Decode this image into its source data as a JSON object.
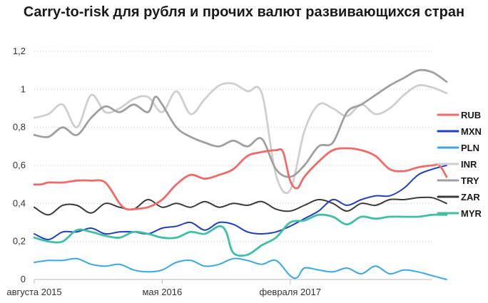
{
  "chart_data": {
    "type": "line",
    "title": "Carry-to-risk для рубля и прочих валют развивающихся стран",
    "xlabel": "",
    "ylabel": "",
    "x_tick_labels": [
      "августа 2015",
      "мая 2016",
      "февраля 2017"
    ],
    "x_tick_positions": [
      0,
      9,
      18
    ],
    "x_range": [
      0,
      28
    ],
    "y_ticks": [
      0,
      0.2,
      0.4,
      0.6,
      0.8,
      1,
      1.2
    ],
    "y_tick_labels": [
      "0",
      "0,2",
      "0,4",
      "0,6",
      "0,8",
      "1",
      "1,2"
    ],
    "ylim": [
      0,
      1.2
    ],
    "grid": "horizontal dotted",
    "legend": "right",
    "series": [
      {
        "name": "RUB",
        "color": "#f06a6a",
        "points": [
          [
            0,
            0.5
          ],
          [
            0.5,
            0.5
          ],
          [
            1,
            0.51
          ],
          [
            2,
            0.51
          ],
          [
            3,
            0.52
          ],
          [
            4,
            0.52
          ],
          [
            5,
            0.51
          ],
          [
            6,
            0.4
          ],
          [
            6.5,
            0.37
          ],
          [
            7,
            0.37
          ],
          [
            8,
            0.38
          ],
          [
            9,
            0.42
          ],
          [
            10,
            0.5
          ],
          [
            11,
            0.55
          ],
          [
            12,
            0.53
          ],
          [
            13,
            0.55
          ],
          [
            14,
            0.58
          ],
          [
            15,
            0.65
          ],
          [
            16,
            0.67
          ],
          [
            17,
            0.68
          ],
          [
            17.5,
            0.67
          ],
          [
            18,
            0.52
          ],
          [
            18.5,
            0.48
          ],
          [
            19,
            0.54
          ],
          [
            20,
            0.62
          ],
          [
            21,
            0.68
          ],
          [
            22,
            0.69
          ],
          [
            23,
            0.68
          ],
          [
            24,
            0.65
          ],
          [
            25,
            0.58
          ],
          [
            26,
            0.57
          ],
          [
            27,
            0.59
          ],
          [
            28,
            0.6
          ],
          [
            28.5,
            0.6
          ],
          [
            29,
            0.54
          ]
        ]
      },
      {
        "name": "MXN",
        "color": "#1f3fbf",
        "points": [
          [
            0,
            0.24
          ],
          [
            1,
            0.21
          ],
          [
            2,
            0.25
          ],
          [
            3,
            0.25
          ],
          [
            4,
            0.27
          ],
          [
            5,
            0.24
          ],
          [
            6,
            0.25
          ],
          [
            7,
            0.25
          ],
          [
            8,
            0.24
          ],
          [
            9,
            0.27
          ],
          [
            10,
            0.28
          ],
          [
            11,
            0.3
          ],
          [
            12,
            0.26
          ],
          [
            13,
            0.3
          ],
          [
            14,
            0.29
          ],
          [
            15,
            0.25
          ],
          [
            16,
            0.24
          ],
          [
            17,
            0.25
          ],
          [
            18,
            0.28
          ],
          [
            19,
            0.32
          ],
          [
            20,
            0.36
          ],
          [
            21,
            0.42
          ],
          [
            22,
            0.39
          ],
          [
            23,
            0.42
          ],
          [
            24,
            0.44
          ],
          [
            25,
            0.44
          ],
          [
            26,
            0.48
          ],
          [
            27,
            0.55
          ],
          [
            28,
            0.58
          ],
          [
            29,
            0.6
          ]
        ]
      },
      {
        "name": "PLN",
        "color": "#3aa8e6",
        "points": [
          [
            0,
            0.09
          ],
          [
            1,
            0.1
          ],
          [
            2,
            0.1
          ],
          [
            3,
            0.11
          ],
          [
            4,
            0.08
          ],
          [
            5,
            0.07
          ],
          [
            6,
            0.08
          ],
          [
            7,
            0.05
          ],
          [
            8,
            0.04
          ],
          [
            9,
            0.05
          ],
          [
            10,
            0.09
          ],
          [
            11,
            0.1
          ],
          [
            12,
            0.07
          ],
          [
            13,
            0.08
          ],
          [
            14,
            0.11
          ],
          [
            15,
            0.1
          ],
          [
            16,
            0.08
          ],
          [
            17,
            0.1
          ],
          [
            18,
            0.02
          ],
          [
            18.5,
            0.01
          ],
          [
            19,
            0.06
          ],
          [
            20,
            0.05
          ],
          [
            21,
            0.04
          ],
          [
            22,
            0.06
          ],
          [
            23,
            0.03
          ],
          [
            24,
            0.07
          ],
          [
            25,
            0.03
          ],
          [
            26,
            0.05
          ],
          [
            27,
            0.04
          ],
          [
            28,
            0.02
          ],
          [
            29,
            0.0
          ]
        ]
      },
      {
        "name": "INR",
        "color": "#cfcfcf",
        "points": [
          [
            0,
            0.85
          ],
          [
            1,
            0.87
          ],
          [
            2,
            0.92
          ],
          [
            3,
            0.8
          ],
          [
            4,
            0.97
          ],
          [
            5,
            0.88
          ],
          [
            6,
            0.9
          ],
          [
            7,
            0.95
          ],
          [
            8,
            0.96
          ],
          [
            9,
            0.88
          ],
          [
            10,
            0.99
          ],
          [
            11,
            0.87
          ],
          [
            12,
            0.95
          ],
          [
            13,
            1.02
          ],
          [
            14,
            1.03
          ],
          [
            15,
            0.99
          ],
          [
            16,
            0.98
          ],
          [
            17,
            0.55
          ],
          [
            18,
            0.47
          ],
          [
            19,
            0.78
          ],
          [
            20,
            0.92
          ],
          [
            21,
            0.9
          ],
          [
            22,
            0.86
          ],
          [
            23,
            0.92
          ],
          [
            24,
            0.87
          ],
          [
            25,
            0.9
          ],
          [
            26,
            0.97
          ],
          [
            27,
            1.02
          ],
          [
            28,
            1.01
          ],
          [
            29,
            0.98
          ]
        ]
      },
      {
        "name": "TRY",
        "color": "#a0a0a0",
        "points": [
          [
            0,
            0.76
          ],
          [
            1,
            0.75
          ],
          [
            2,
            0.8
          ],
          [
            3,
            0.76
          ],
          [
            4,
            0.85
          ],
          [
            5,
            0.91
          ],
          [
            6,
            0.88
          ],
          [
            7,
            0.92
          ],
          [
            8,
            0.88
          ],
          [
            8.5,
            0.96
          ],
          [
            9,
            0.92
          ],
          [
            10,
            0.8
          ],
          [
            11,
            0.75
          ],
          [
            12,
            0.72
          ],
          [
            13,
            0.7
          ],
          [
            14,
            0.73
          ],
          [
            15,
            0.7
          ],
          [
            16,
            0.74
          ],
          [
            17,
            0.58
          ],
          [
            18,
            0.54
          ],
          [
            19,
            0.6
          ],
          [
            20,
            0.7
          ],
          [
            21,
            0.72
          ],
          [
            22,
            0.88
          ],
          [
            23,
            0.92
          ],
          [
            24,
            0.97
          ],
          [
            25,
            1.02
          ],
          [
            26,
            1.06
          ],
          [
            27,
            1.1
          ],
          [
            28,
            1.09
          ],
          [
            29,
            1.04
          ]
        ]
      },
      {
        "name": "ZAR",
        "color": "#3a3a3a",
        "points": [
          [
            0,
            0.38
          ],
          [
            1,
            0.34
          ],
          [
            2,
            0.39
          ],
          [
            3,
            0.39
          ],
          [
            4,
            0.35
          ],
          [
            5,
            0.4
          ],
          [
            6,
            0.38
          ],
          [
            7,
            0.37
          ],
          [
            8,
            0.42
          ],
          [
            9,
            0.38
          ],
          [
            10,
            0.4
          ],
          [
            11,
            0.38
          ],
          [
            12,
            0.41
          ],
          [
            13,
            0.38
          ],
          [
            14,
            0.4
          ],
          [
            15,
            0.39
          ],
          [
            16,
            0.41
          ],
          [
            17,
            0.37
          ],
          [
            18,
            0.36
          ],
          [
            19,
            0.39
          ],
          [
            20,
            0.42
          ],
          [
            21,
            0.4
          ],
          [
            22,
            0.36
          ],
          [
            23,
            0.4
          ],
          [
            24,
            0.39
          ],
          [
            25,
            0.42
          ],
          [
            26,
            0.42
          ],
          [
            27,
            0.43
          ],
          [
            28,
            0.43
          ],
          [
            29,
            0.4
          ]
        ]
      },
      {
        "name": "MYR",
        "color": "#3fbfa4",
        "points": [
          [
            0,
            0.22
          ],
          [
            1,
            0.2
          ],
          [
            2,
            0.2
          ],
          [
            3,
            0.26
          ],
          [
            4,
            0.25
          ],
          [
            5,
            0.23
          ],
          [
            6,
            0.22
          ],
          [
            7,
            0.25
          ],
          [
            8,
            0.24
          ],
          [
            9,
            0.22
          ],
          [
            10,
            0.22
          ],
          [
            11,
            0.25
          ],
          [
            12,
            0.24
          ],
          [
            13,
            0.28
          ],
          [
            13.5,
            0.25
          ],
          [
            14,
            0.14
          ],
          [
            15,
            0.13
          ],
          [
            16,
            0.18
          ],
          [
            17,
            0.22
          ],
          [
            18,
            0.3
          ],
          [
            19,
            0.31
          ],
          [
            20,
            0.34
          ],
          [
            21,
            0.33
          ],
          [
            22,
            0.29
          ],
          [
            23,
            0.33
          ],
          [
            24,
            0.32
          ],
          [
            25,
            0.33
          ],
          [
            26,
            0.33
          ],
          [
            27,
            0.33
          ],
          [
            28,
            0.34
          ],
          [
            29,
            0.34
          ]
        ]
      }
    ]
  }
}
